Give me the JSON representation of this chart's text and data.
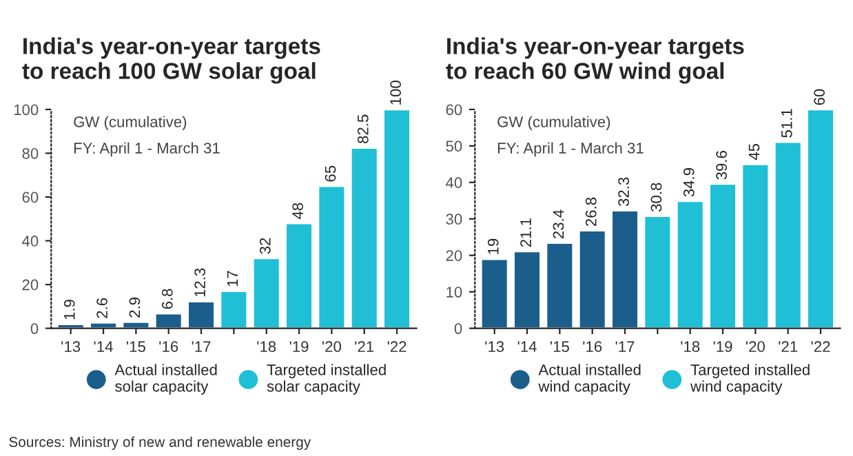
{
  "chart_data": [
    {
      "type": "bar",
      "title": "India's year-on-year targets\nto reach 100 GW solar goal",
      "categories": [
        "'13",
        "'14",
        "'15",
        "'16",
        "'17",
        null,
        "'18",
        "'19",
        "'20",
        "'21",
        "'22"
      ],
      "series": [
        {
          "name": "Actual installed\nsolar capacity",
          "color": "#1b5e8c",
          "values": [
            1.9,
            2.6,
            2.9,
            6.8,
            12.3,
            null,
            null,
            null,
            null,
            null,
            null
          ]
        },
        {
          "name": "Targeted installed\nsolar capacity",
          "color": "#1fbfd6",
          "values": [
            null,
            null,
            null,
            null,
            null,
            17,
            32,
            48,
            65,
            82.5,
            100
          ]
        }
      ],
      "ylim": [
        0,
        100
      ],
      "yticks": [
        0,
        20,
        40,
        60,
        80,
        100
      ],
      "data_labels": true,
      "legend": "bottom",
      "grid": false,
      "annotations": [
        "GW (cumulative)",
        "FY: April 1 - March 31",
        "Sources: Ministry of new and renewable energy"
      ]
    },
    {
      "type": "bar",
      "title": "India's year-on-year targets\nto reach 60 GW wind goal",
      "categories": [
        "'13",
        "'14",
        "'15",
        "'16",
        "'17",
        null,
        "'18",
        "'19",
        "'20",
        "'21",
        "'22"
      ],
      "series": [
        {
          "name": "Actual installed\nwind capacity",
          "color": "#1b5e8c",
          "values": [
            19,
            21.1,
            23.4,
            26.8,
            32.3,
            null,
            null,
            null,
            null,
            null,
            null
          ]
        },
        {
          "name": "Targeted installed\nwind capacity",
          "color": "#1fbfd6",
          "values": [
            null,
            null,
            null,
            null,
            null,
            30.8,
            34.9,
            39.6,
            45,
            51.1,
            60
          ]
        }
      ],
      "ylim": [
        0,
        60
      ],
      "yticks": [
        0,
        10,
        20,
        30,
        40,
        50,
        60
      ],
      "data_labels": true,
      "legend": "bottom",
      "grid": false,
      "annotations": [
        "GW (cumulative)",
        "FY: April 1 - March 31"
      ]
    }
  ]
}
